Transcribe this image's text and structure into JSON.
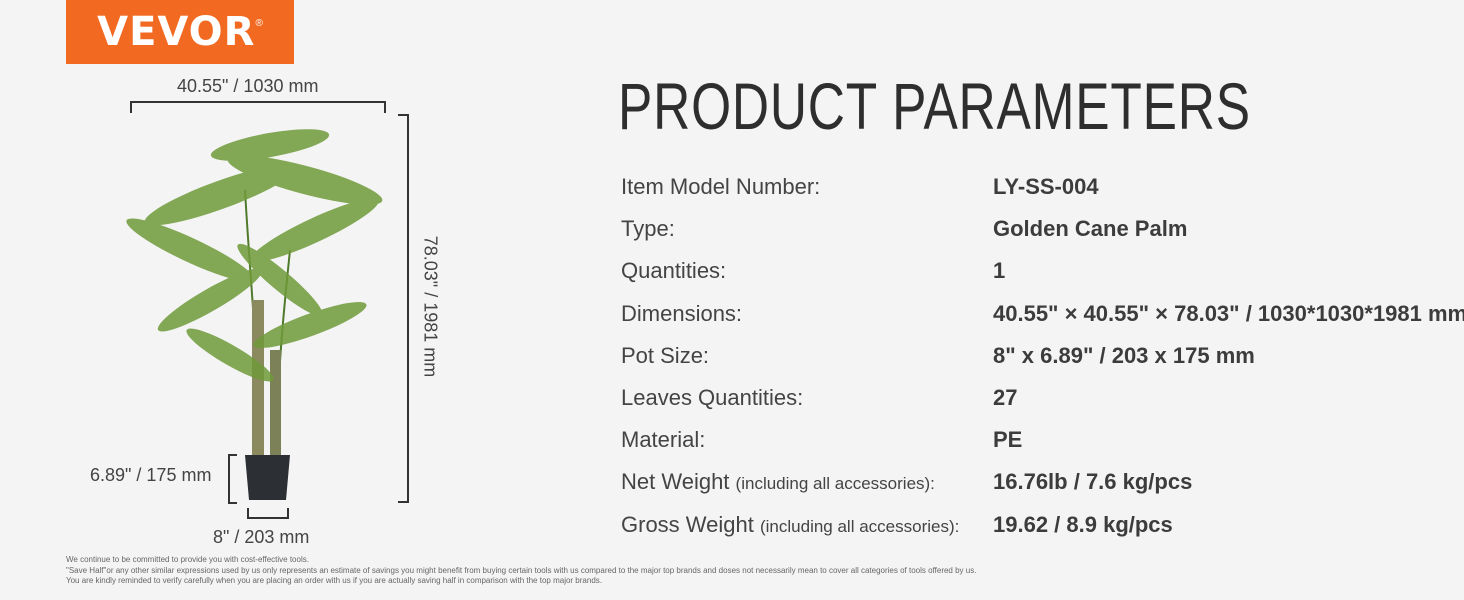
{
  "brand": {
    "logo_text": "VEVOR",
    "registered": "®",
    "color": "#f26a22"
  },
  "title": "PRODUCT PARAMETERS",
  "dimensions": {
    "width": "40.55\"  /  1030 mm",
    "height": "78.03\"  /  1981 mm",
    "pot_height": "6.89\" / 175 mm",
    "pot_width": "8\" /  203 mm"
  },
  "params": [
    {
      "label": "Item Model Number:",
      "note": "",
      "value": "LY-SS-004"
    },
    {
      "label": "Type:",
      "note": "",
      "value": "Golden Cane Palm"
    },
    {
      "label": "Quantities:",
      "note": "",
      "value": "1"
    },
    {
      "label": "Dimensions:",
      "note": "",
      "value": "40.55\" × 40.55\" × 78.03\" / 1030*1030*1981 mm"
    },
    {
      "label": "Pot Size:",
      "note": "",
      "value": "8\" x 6.89\" / 203 x 175 mm"
    },
    {
      "label": "Leaves Quantities:",
      "note": "",
      "value": "27"
    },
    {
      "label": "Material:",
      "note": "",
      "value": "PE"
    },
    {
      "label": "Net Weight ",
      "note": "(including all accessories):",
      "value": "16.76lb / 7.6 kg/pcs"
    },
    {
      "label": "Gross Weight ",
      "note": "(including all accessories):",
      "value": "19.62 / 8.9  kg/pcs"
    }
  ],
  "footer": [
    "We continue to be committed to provide you with cost-effective tools.",
    "\"Save Half\"or any other similar expressions used by us only represents an estimate of savings you might benefit from buying certain tools with us compared to the major top brands and doses not necessarily mean to cover all categories of tools offered by us.",
    "You are kindly reminded to verify carefully when you are placing an order with us if you are actually saving half in comparison with the top major brands."
  ]
}
